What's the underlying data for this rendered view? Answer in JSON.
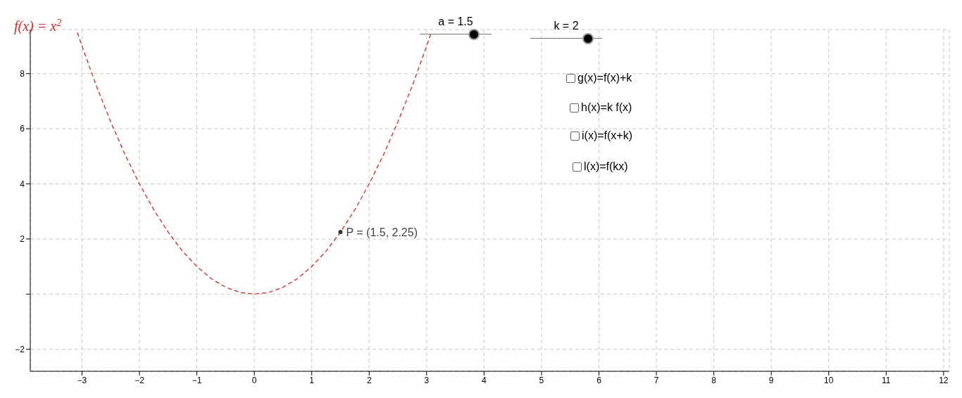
{
  "chart_data": {
    "type": "line",
    "xlim": [
      -3.9,
      12.1
    ],
    "ylim": [
      -2.8,
      9.6
    ],
    "xticks": [
      -3,
      -2,
      -1,
      0,
      1,
      2,
      3,
      4,
      5,
      6,
      7,
      8,
      9,
      10,
      11,
      12
    ],
    "yticks": [
      -2,
      {
        "value": 0,
        "label": null
      },
      2,
      4,
      6,
      8
    ],
    "grid": true,
    "legend": "top left",
    "line_style": "dashed",
    "marker": "none",
    "series": [
      {
        "name": "f(x) = x$^{2}$",
        "color": "#d42a2a",
        "x": [
          -3.08,
          -3,
          -2.75,
          -2.5,
          -2.25,
          -2,
          -1.75,
          -1.5,
          -1.25,
          -1,
          -0.75,
          -0.5,
          -0.25,
          0,
          0.25,
          0.5,
          0.75,
          1,
          1.25,
          1.5,
          1.75,
          2,
          2.25,
          2.5,
          2.75,
          3,
          3.08
        ],
        "values": [
          9.49,
          9,
          7.56,
          6.25,
          5.06,
          4,
          3.06,
          2.25,
          1.56,
          1,
          0.56,
          0.25,
          0.06,
          0,
          0.06,
          0.25,
          0.56,
          1,
          1.56,
          2.25,
          3.06,
          4,
          5.06,
          6.25,
          7.56,
          9,
          9.49
        ]
      },
      {
        "type": "scatter",
        "marker": "circle",
        "color": "#333333",
        "x": [
          1.5
        ],
        "values": [
          2.25
        ]
      }
    ],
    "annotations": [
      {
        "text": "P = (1.5, 2.25)",
        "x": 1.5,
        "y": 2.25
      },
      "a = 1.5",
      "k = 2",
      "g(x)=f(x)+k",
      "h(x)=k f(x)",
      "i(x)=f(x+k)",
      "l(x)=f(kx)"
    ]
  }
}
